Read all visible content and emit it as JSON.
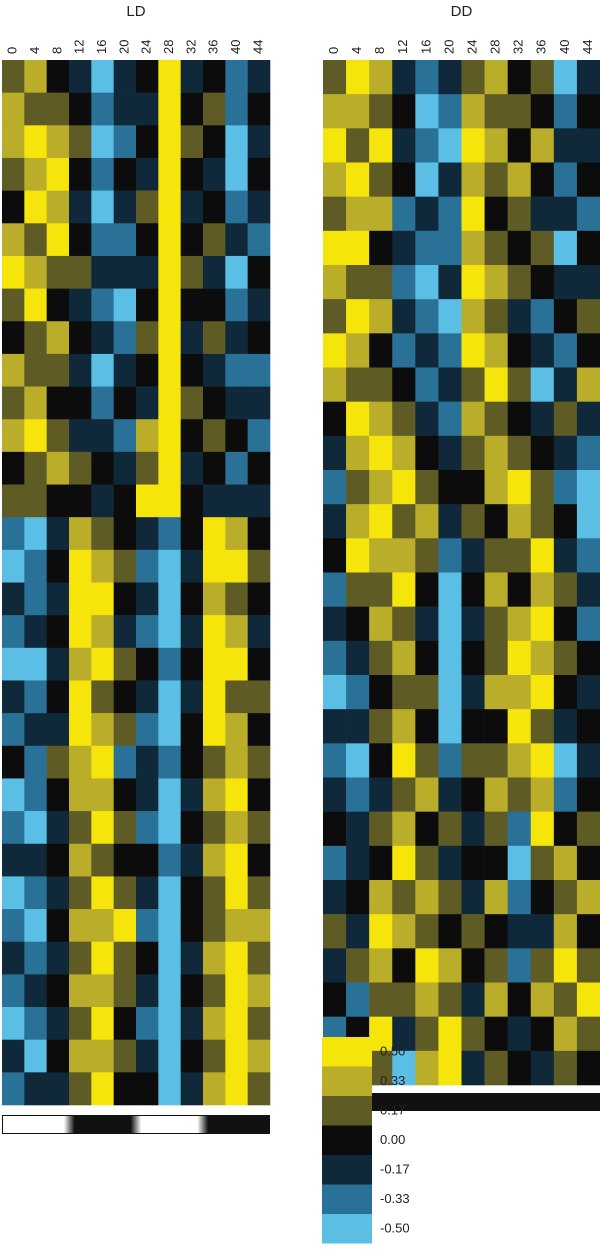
{
  "chart_data": [
    {
      "type": "heatmap",
      "title": "LD",
      "categories": [
        "0",
        "4",
        "8",
        "12",
        "16",
        "20",
        "24",
        "28",
        "32",
        "36",
        "40",
        "44"
      ],
      "values": [
        [
          0.17,
          0.33,
          0,
          -0.17,
          -0.5,
          -0.17,
          0,
          0.5,
          -0.17,
          0,
          -0.33,
          -0.17
        ],
        [
          0.33,
          0.17,
          0.17,
          0,
          -0.33,
          -0.17,
          -0.17,
          0.5,
          0,
          0.17,
          -0.33,
          0
        ],
        [
          0.33,
          0.5,
          0.33,
          0.17,
          -0.5,
          -0.33,
          0,
          0.5,
          0.17,
          0,
          -0.5,
          -0.17
        ],
        [
          0.17,
          0.33,
          0.5,
          0,
          -0.33,
          0,
          -0.17,
          0.5,
          0,
          -0.17,
          -0.5,
          0
        ],
        [
          0,
          0.5,
          0.33,
          -0.17,
          -0.5,
          -0.17,
          0.17,
          0.5,
          -0.17,
          0,
          -0.33,
          -0.17
        ],
        [
          0.33,
          0.17,
          0.5,
          0,
          -0.33,
          -0.33,
          0,
          0.5,
          0,
          0.17,
          -0.17,
          -0.33
        ],
        [
          0.5,
          0.33,
          0.17,
          0.17,
          -0.17,
          -0.17,
          -0.17,
          0.5,
          0.17,
          -0.17,
          -0.5,
          0
        ],
        [
          0.17,
          0.5,
          0,
          -0.17,
          -0.33,
          -0.5,
          0,
          0.5,
          0,
          0,
          -0.33,
          -0.17
        ],
        [
          0,
          0.17,
          0.33,
          0,
          -0.17,
          -0.33,
          0.17,
          0.5,
          -0.17,
          0.17,
          -0.17,
          0
        ],
        [
          0.33,
          0.17,
          0.17,
          -0.17,
          -0.5,
          -0.17,
          0,
          0.5,
          0,
          -0.17,
          -0.33,
          -0.33
        ],
        [
          0.17,
          0.33,
          0,
          0,
          -0.33,
          0,
          -0.17,
          0.5,
          0.17,
          0,
          -0.17,
          -0.17
        ],
        [
          0.33,
          0.5,
          0.17,
          -0.17,
          -0.17,
          -0.33,
          0.33,
          0.5,
          0,
          0.17,
          0,
          -0.33
        ],
        [
          0,
          0.17,
          0.33,
          0.17,
          0,
          -0.17,
          0.17,
          0.5,
          -0.17,
          0,
          -0.33,
          0
        ],
        [
          0.17,
          0.17,
          0,
          0,
          -0.17,
          0,
          0.5,
          0.5,
          0,
          -0.17,
          -0.17,
          -0.17
        ],
        [
          -0.33,
          -0.5,
          -0.17,
          0.33,
          0.17,
          0,
          -0.17,
          -0.33,
          0,
          0.5,
          0.33,
          0
        ],
        [
          -0.5,
          -0.33,
          0,
          0.5,
          0.33,
          0.17,
          -0.33,
          -0.5,
          -0.17,
          0.5,
          0.5,
          0.17
        ],
        [
          -0.17,
          -0.33,
          -0.17,
          0.5,
          0.5,
          0,
          -0.17,
          -0.5,
          0,
          0.33,
          0.17,
          0
        ],
        [
          -0.33,
          -0.17,
          0,
          0.5,
          0.33,
          -0.17,
          -0.33,
          -0.5,
          -0.17,
          0.5,
          0.33,
          -0.17
        ],
        [
          -0.5,
          -0.5,
          -0.17,
          0.33,
          0.5,
          0.17,
          0,
          -0.33,
          0,
          0.5,
          0.5,
          0
        ],
        [
          -0.17,
          -0.33,
          0,
          0.5,
          0.17,
          0,
          -0.17,
          -0.5,
          -0.17,
          0.5,
          0.17,
          0.17
        ],
        [
          -0.33,
          -0.17,
          -0.17,
          0.5,
          0.33,
          0.17,
          -0.33,
          -0.5,
          0,
          0.5,
          0.33,
          0
        ],
        [
          0,
          -0.33,
          0.17,
          0.33,
          0.5,
          -0.33,
          -0.17,
          -0.33,
          0,
          0.17,
          0.33,
          0.17
        ],
        [
          -0.5,
          -0.33,
          0,
          0.33,
          0.33,
          0,
          -0.17,
          -0.5,
          -0.17,
          0.33,
          0.5,
          0
        ],
        [
          -0.33,
          -0.5,
          -0.17,
          0.17,
          0.5,
          0.17,
          -0.33,
          -0.5,
          0,
          0.17,
          0.33,
          0.17
        ],
        [
          -0.17,
          -0.17,
          0,
          0.33,
          0.17,
          0,
          0,
          -0.33,
          -0.17,
          0.33,
          0.5,
          0
        ],
        [
          -0.5,
          -0.33,
          -0.17,
          0.17,
          0.5,
          0.17,
          -0.17,
          -0.5,
          0,
          0.17,
          0.5,
          0.17
        ],
        [
          -0.33,
          -0.5,
          0,
          0.33,
          0.33,
          0.5,
          -0.33,
          -0.5,
          0,
          0.17,
          0.33,
          0.33
        ],
        [
          -0.17,
          -0.33,
          -0.17,
          0.17,
          0.5,
          0.17,
          0,
          -0.5,
          -0.17,
          0.33,
          0.5,
          0.17
        ],
        [
          -0.33,
          -0.17,
          0,
          0.33,
          0.33,
          0.17,
          -0.17,
          -0.5,
          0,
          0.17,
          0.5,
          0.33
        ],
        [
          -0.5,
          -0.33,
          -0.17,
          0.17,
          0.5,
          0,
          -0.33,
          -0.5,
          -0.17,
          0.33,
          0.5,
          0.17
        ],
        [
          -0.17,
          -0.5,
          0,
          0.33,
          0.33,
          0.17,
          -0.17,
          -0.5,
          0,
          0.17,
          0.5,
          0.33
        ],
        [
          -0.33,
          -0.17,
          -0.17,
          0.17,
          0.5,
          0,
          0,
          -0.5,
          -0.17,
          0.33,
          0.5,
          0.17
        ]
      ]
    },
    {
      "type": "heatmap",
      "title": "DD",
      "categories": [
        "0",
        "4",
        "8",
        "12",
        "16",
        "20",
        "24",
        "28",
        "32",
        "36",
        "40",
        "44"
      ],
      "values": [
        [
          0.17,
          0.5,
          0.33,
          -0.17,
          -0.33,
          -0.17,
          0.17,
          0.33,
          0,
          0.17,
          -0.5,
          -0.17
        ],
        [
          0.33,
          0.33,
          0.17,
          0,
          -0.5,
          -0.33,
          0.33,
          0.17,
          0.17,
          0,
          -0.33,
          0
        ],
        [
          0.5,
          0.17,
          0.5,
          -0.17,
          -0.33,
          -0.5,
          0.5,
          0.33,
          0,
          0.33,
          -0.17,
          -0.17
        ],
        [
          0.33,
          0.5,
          0.17,
          0,
          -0.5,
          -0.17,
          0.33,
          0.17,
          0.33,
          0,
          -0.33,
          0
        ],
        [
          0.17,
          0.33,
          0.33,
          -0.33,
          -0.17,
          -0.33,
          0.5,
          0,
          0.17,
          -0.17,
          -0.17,
          -0.33
        ],
        [
          0.5,
          0.5,
          0,
          -0.17,
          -0.33,
          -0.33,
          0.33,
          0.17,
          0,
          0.17,
          -0.5,
          0
        ],
        [
          0.33,
          0.17,
          0.17,
          -0.33,
          -0.5,
          -0.17,
          0.5,
          0.33,
          0.17,
          0,
          -0.17,
          -0.17
        ],
        [
          0.17,
          0.5,
          0.33,
          -0.17,
          -0.33,
          -0.5,
          0.33,
          0.17,
          -0.17,
          -0.33,
          0,
          0.17
        ],
        [
          0.5,
          0.33,
          0,
          -0.33,
          -0.17,
          -0.33,
          0.5,
          0.33,
          0,
          -0.17,
          -0.33,
          0
        ],
        [
          0.33,
          0.17,
          0.17,
          0,
          -0.33,
          -0.17,
          0.17,
          0.5,
          0.17,
          -0.5,
          -0.17,
          0.33
        ],
        [
          0,
          0.5,
          0.33,
          0.17,
          -0.17,
          -0.33,
          0.33,
          0.17,
          0,
          -0.17,
          0.17,
          -0.17
        ],
        [
          -0.17,
          0.33,
          0.5,
          0.33,
          0,
          -0.17,
          0.17,
          0.33,
          0.17,
          0,
          -0.17,
          -0.33
        ],
        [
          -0.33,
          0.17,
          0.33,
          0.5,
          0.17,
          0,
          0,
          0.33,
          0.5,
          0.17,
          -0.33,
          -0.5
        ],
        [
          -0.17,
          0.33,
          0.5,
          0.17,
          0.33,
          -0.17,
          0.17,
          0,
          0.33,
          0.17,
          0,
          -0.5
        ],
        [
          0,
          0.5,
          0.33,
          0.33,
          0.17,
          -0.33,
          -0.17,
          0.17,
          0.17,
          0.5,
          -0.17,
          -0.33
        ],
        [
          -0.33,
          0.17,
          0.17,
          0.5,
          0,
          -0.5,
          0,
          0.33,
          0,
          0.33,
          0.17,
          -0.17
        ],
        [
          -0.17,
          0,
          0.33,
          0.17,
          -0.17,
          -0.5,
          -0.17,
          0.17,
          0.33,
          0.5,
          0,
          -0.33
        ],
        [
          -0.33,
          -0.17,
          0.17,
          0.33,
          0,
          -0.5,
          0,
          0.17,
          0.5,
          0.33,
          0.17,
          0
        ],
        [
          -0.5,
          -0.33,
          0,
          0.17,
          0.17,
          -0.5,
          -0.17,
          0.33,
          0.33,
          0.5,
          0,
          -0.17
        ],
        [
          -0.17,
          -0.17,
          0.17,
          0.33,
          0,
          -0.5,
          0,
          0,
          0.5,
          0.17,
          -0.17,
          0
        ],
        [
          -0.33,
          -0.5,
          0,
          0.5,
          0.17,
          -0.33,
          0.17,
          0.17,
          0.33,
          0.5,
          -0.5,
          -0.17
        ],
        [
          -0.17,
          -0.33,
          -0.17,
          0.17,
          0.33,
          -0.17,
          0,
          0.33,
          0.17,
          0.33,
          -0.33,
          0
        ],
        [
          0,
          -0.17,
          0.17,
          0.33,
          0,
          0.17,
          -0.17,
          0.17,
          -0.33,
          0.5,
          0,
          0.17
        ],
        [
          -0.33,
          -0.17,
          0,
          0.5,
          0.17,
          -0.17,
          0,
          0,
          -0.5,
          0.17,
          0.33,
          0
        ],
        [
          -0.17,
          0,
          0.33,
          0.17,
          0.33,
          0.17,
          -0.17,
          0.33,
          -0.33,
          0,
          0.17,
          0.33
        ],
        [
          0.17,
          -0.17,
          0.5,
          0.33,
          0.17,
          0,
          0.17,
          0,
          -0.17,
          -0.17,
          0.33,
          0
        ],
        [
          -0.17,
          0.17,
          0.33,
          0,
          0.5,
          0.33,
          0,
          0.17,
          -0.33,
          0.17,
          0.5,
          0.17
        ],
        [
          0,
          -0.33,
          0.17,
          0.17,
          0.33,
          0.17,
          -0.17,
          0.33,
          0,
          0.33,
          0.17,
          0.5
        ],
        [
          -0.33,
          0,
          0.5,
          -0.17,
          0.17,
          0.5,
          0.17,
          0,
          -0.17,
          0,
          0.33,
          0.17
        ],
        [
          -0.17,
          -0.17,
          0.17,
          -0.5,
          0.33,
          0.5,
          -0.17,
          0.17,
          0,
          -0.17,
          0.17,
          0
        ]
      ]
    }
  ],
  "legend": {
    "ticks": [
      {
        "value": 0.5,
        "label": "0.50"
      },
      {
        "value": 0.33,
        "label": "0.33"
      },
      {
        "value": 0.17,
        "label": "0.17"
      },
      {
        "value": 0,
        "label": "0.00"
      },
      {
        "value": -0.17,
        "label": "-0.17"
      },
      {
        "value": -0.33,
        "label": "-0.33"
      },
      {
        "value": -0.5,
        "label": "-0.50"
      }
    ],
    "colors": [
      "#f5e50a",
      "#b9ad29",
      "#5f5b24",
      "#0c0c0c",
      "#10293a",
      "#2a7197",
      "#5bbee4"
    ]
  }
}
